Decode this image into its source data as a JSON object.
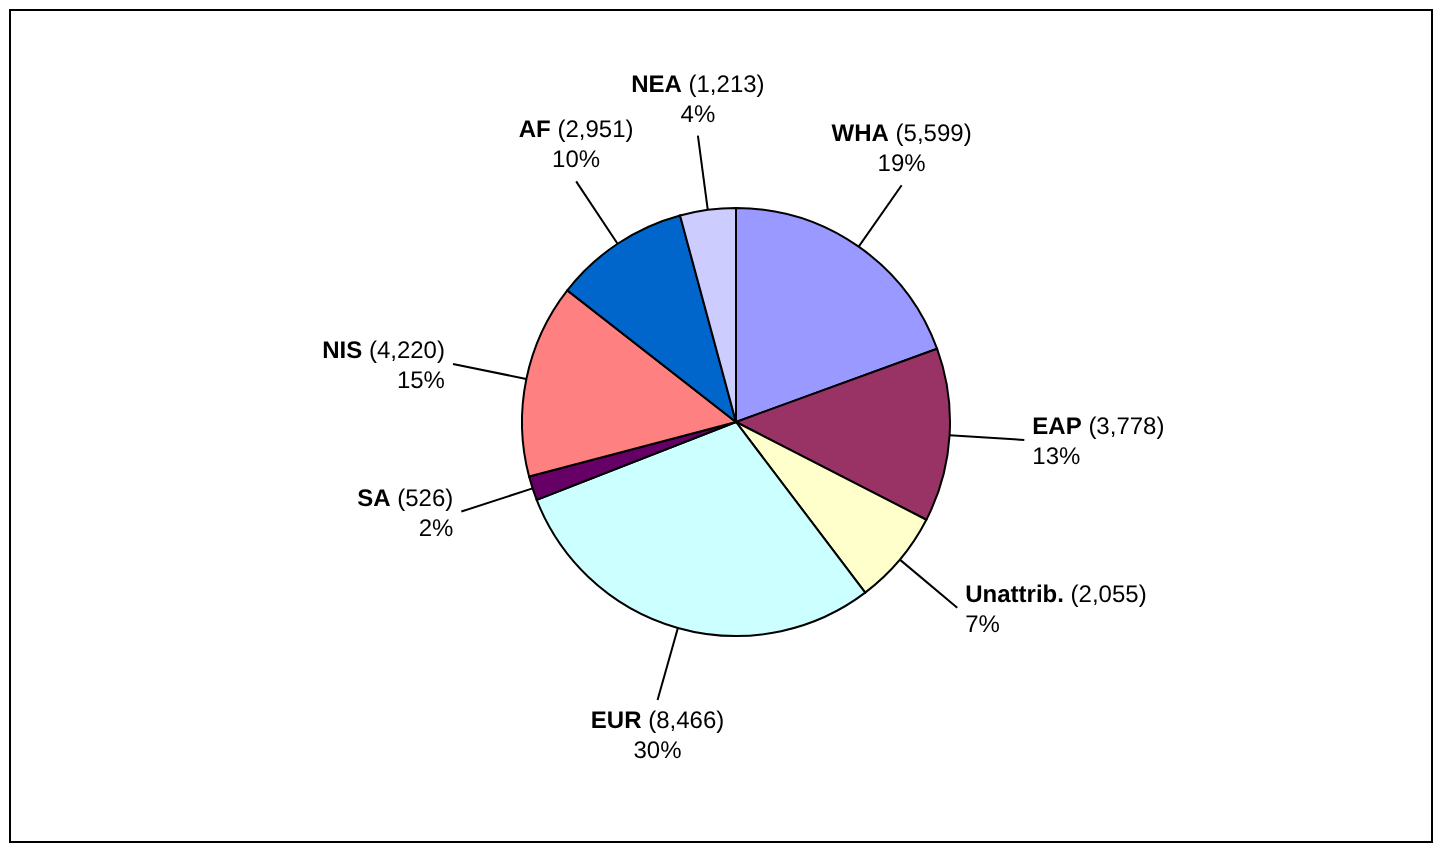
{
  "chart_data": {
    "type": "pie",
    "categories": [
      "WHA",
      "EAP",
      "Unattrib.",
      "EUR",
      "SA",
      "NIS",
      "AF",
      "NEA"
    ],
    "values": [
      5599,
      3778,
      2055,
      8466,
      526,
      4220,
      2951,
      1213
    ],
    "colors": [
      "#9999ff",
      "#993366",
      "#ffffcc",
      "#ccffff",
      "#660066",
      "#ff8080",
      "#0066cc",
      "#ccccff"
    ],
    "value_labels": [
      "(5,599)\n19%",
      "(3,778)\n13%",
      "(2,055)\n7%",
      "(8,466)\n30%",
      "(526)\n2%",
      "(4,220)\n15%",
      "(2,951)\n10%",
      "(1,213)\n4%"
    ]
  }
}
